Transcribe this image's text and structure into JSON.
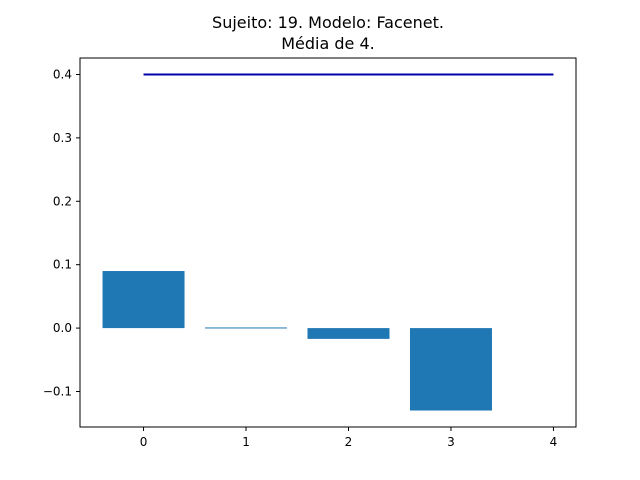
{
  "chart_data": {
    "type": "bar",
    "title_line1": "Sujeito: 19. Modelo: Facenet.",
    "title_line2": "Média de 4.",
    "xlabel": "",
    "ylabel": "",
    "categories": [
      0,
      1,
      2,
      3
    ],
    "values": [
      0.09,
      0.001,
      -0.017,
      -0.13
    ],
    "bar_color": "#1f77b4",
    "reference_line": {
      "x_start": 0,
      "x_end": 4,
      "y": 0.4,
      "color": "#0000aa"
    },
    "xlim": [
      -0.62,
      4.22
    ],
    "ylim": [
      -0.156,
      0.426
    ],
    "xticks": [
      "0",
      "1",
      "2",
      "3",
      "4"
    ],
    "yticks": [
      "0.4",
      "0.3",
      "0.2",
      "0.1",
      "0.0",
      "−0.1"
    ],
    "ytick_values": [
      0.4,
      0.3,
      0.2,
      0.1,
      0.0,
      -0.1
    ],
    "grid": false
  }
}
